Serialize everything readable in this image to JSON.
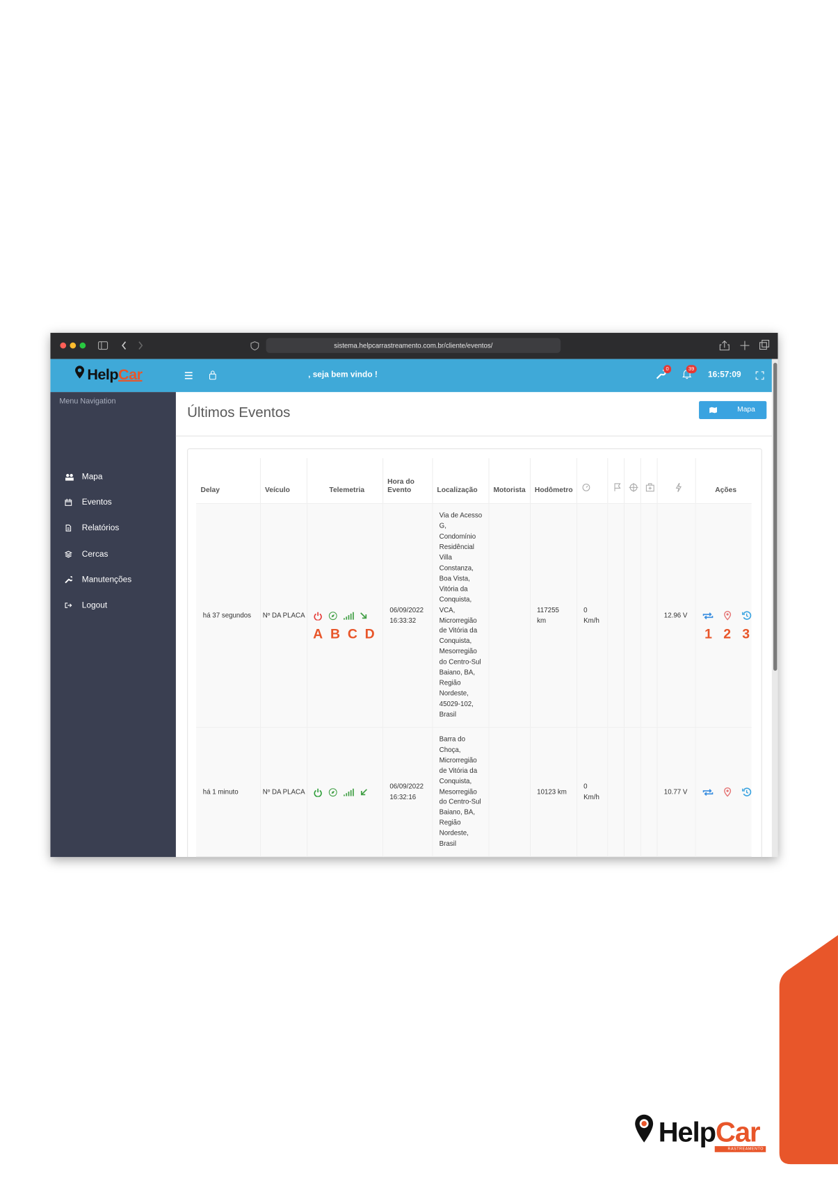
{
  "browser": {
    "url": "sistema.helpcarrastreamento.com.br/cliente/eventos/"
  },
  "header": {
    "logo": {
      "part1": "Help",
      "part2": "Car"
    },
    "welcome": ", seja bem vindo !",
    "tools_badge": "0",
    "notifications_badge": "39",
    "time": "16:57:09"
  },
  "sidebar": {
    "title": "Menu Navigation",
    "items": [
      "Mapa",
      "Eventos",
      "Relatórios",
      "Cercas",
      "Manutenções",
      "Logout"
    ]
  },
  "page": {
    "title": "Últimos Eventos",
    "map_button": "Mapa"
  },
  "table": {
    "headers": {
      "delay": "Delay",
      "vehicle": "Veículo",
      "telemetry": "Telemetria",
      "event_time": "Hora do Evento",
      "location": "Localização",
      "driver": "Motorista",
      "odometer": "Hodômetro",
      "actions": "Ações"
    },
    "rows": [
      {
        "delay": "há 37 segundos",
        "vehicle": "Nº DA PLACA",
        "event_time": "06/09/2022 16:33:32",
        "location": "Via de Acesso G, Condomínio Residêncial Villa Constanza, Boa Vista, Vitória da Conquista, VCA, Microrregião de Vitória da Conquista, Mesorregião do Centro-Sul Baiano, BA, Região Nordeste, 45029-102, Brasil",
        "odometer": "117255 km",
        "speed": "0 Km/h",
        "voltage": "12.96 V",
        "ignition": "off"
      },
      {
        "delay": "há 1 minuto",
        "vehicle": "Nº DA PLACA",
        "event_time": "06/09/2022 16:32:16",
        "location": "Barra do Choça, Microrregião de Vitória da Conquista, Mesorregião do Centro-Sul Baiano, BA, Região Nordeste, Brasil",
        "odometer": "10123 km",
        "speed": "0 Km/h",
        "voltage": "10.77 V",
        "ignition": "on"
      }
    ]
  },
  "annotations": {
    "telemetry": [
      "A",
      "B",
      "C",
      "D"
    ],
    "actions": [
      "1",
      "2",
      "3"
    ]
  },
  "footer_logo": {
    "part1": "Help",
    "part2": "Car",
    "tagline": "RASTREAMENTO"
  }
}
